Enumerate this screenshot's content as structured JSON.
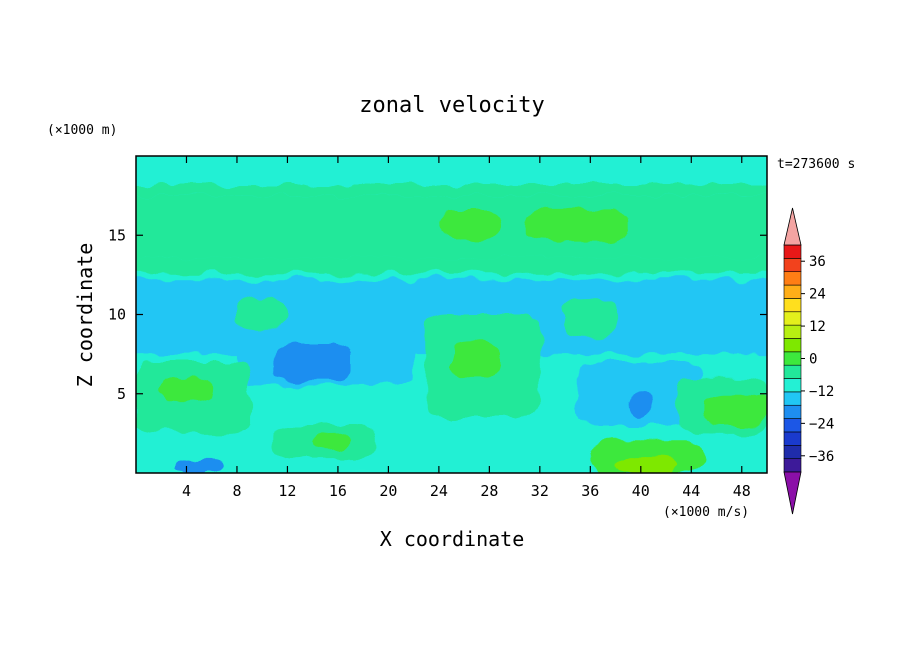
{
  "chart_data": {
    "type": "heatmap",
    "title": "zonal velocity",
    "xlabel": "X coordinate",
    "ylabel": "Z coordinate",
    "x_unit": "(×1000 m/s)",
    "y_unit": "(×1000 m)",
    "time_label": "t=273600 s",
    "xlim": [
      0,
      50
    ],
    "ylim": [
      0,
      20
    ],
    "x_ticks": [
      4,
      8,
      12,
      16,
      20,
      24,
      28,
      32,
      36,
      40,
      44,
      48
    ],
    "y_ticks": [
      5,
      10,
      15
    ],
    "colorbar": {
      "vmin": -42,
      "vmax": 42,
      "step": 6,
      "tick_values": [
        36,
        24,
        12,
        0,
        -12,
        -24,
        -36
      ],
      "tick_labels": [
        "36",
        "24",
        "12",
        "0",
        "−12",
        "−24",
        "−36"
      ],
      "colors_low_to_high": [
        "#3d1a99",
        "#1f2cab",
        "#1a3acd",
        "#1c57e6",
        "#1e8ef0",
        "#21c6f4",
        "#24f0d4",
        "#22e89a",
        "#3de83d",
        "#7ee800",
        "#b7ef12",
        "#e4f01c",
        "#ffdf1e",
        "#ffae18",
        "#ff7e15",
        "#f2421d",
        "#e81818"
      ],
      "under_color": "#8b0fa8",
      "over_color": "#f4a4a2"
    },
    "field_regions": [
      {
        "x": [
          0,
          50
        ],
        "z": [
          0,
          20
        ],
        "value": -3
      },
      {
        "x": [
          0,
          50
        ],
        "z": [
          13.6,
          17.5
        ],
        "value": 3
      },
      {
        "x": [
          0,
          50
        ],
        "z": [
          18.2,
          20
        ],
        "value": -3
      },
      {
        "x": [
          0,
          50
        ],
        "z": [
          17.5,
          18.2
        ],
        "value": 1
      },
      {
        "x": [
          0,
          50
        ],
        "z": [
          12.5,
          13.6
        ],
        "value": 1
      },
      {
        "x": [
          0,
          50
        ],
        "z": [
          7.5,
          12.2
        ],
        "value": -7
      },
      {
        "x": [
          0,
          50
        ],
        "z": [
          12.2,
          12.6
        ],
        "value": -4
      },
      {
        "x": [
          31,
          39
        ],
        "z": [
          14.6,
          16.6
        ],
        "value": 8
      },
      {
        "x": [
          24,
          29
        ],
        "z": [
          14.8,
          16.5
        ],
        "value": 6
      },
      {
        "x": [
          8,
          22
        ],
        "z": [
          5.5,
          9.5
        ],
        "value": -10
      },
      {
        "x": [
          11,
          17
        ],
        "z": [
          5.8,
          8.2
        ],
        "value": -13
      },
      {
        "x": [
          23,
          32
        ],
        "z": [
          3.5,
          10
        ],
        "value": 3
      },
      {
        "x": [
          25,
          29
        ],
        "z": [
          6,
          8.5
        ],
        "value": 8
      },
      {
        "x": [
          0,
          9
        ],
        "z": [
          2.5,
          7
        ],
        "value": 3
      },
      {
        "x": [
          2,
          6
        ],
        "z": [
          4.5,
          6
        ],
        "value": 9
      },
      {
        "x": [
          0,
          4
        ],
        "z": [
          0,
          2.5
        ],
        "value": -3
      },
      {
        "x": [
          3,
          7
        ],
        "z": [
          0,
          0.8
        ],
        "value": -16
      },
      {
        "x": [
          11,
          19
        ],
        "z": [
          1,
          3
        ],
        "value": 5
      },
      {
        "x": [
          14,
          17
        ],
        "z": [
          1.5,
          2.5
        ],
        "value": 9
      },
      {
        "x": [
          22,
          35
        ],
        "z": [
          0,
          3.5
        ],
        "value": -6
      },
      {
        "x": [
          36,
          45
        ],
        "z": [
          0,
          2
        ],
        "value": 6
      },
      {
        "x": [
          38,
          43
        ],
        "z": [
          0,
          1
        ],
        "value": 12
      },
      {
        "x": [
          35,
          45
        ],
        "z": [
          3,
          7
        ],
        "value": -9
      },
      {
        "x": [
          39,
          41
        ],
        "z": [
          3.5,
          5
        ],
        "value": -15
      },
      {
        "x": [
          43,
          50
        ],
        "z": [
          2.5,
          6
        ],
        "value": 4
      },
      {
        "x": [
          45,
          50
        ],
        "z": [
          3,
          5
        ],
        "value": 8
      },
      {
        "x": [
          34,
          38
        ],
        "z": [
          8.5,
          11
        ],
        "value": 0
      },
      {
        "x": [
          8,
          12
        ],
        "z": [
          9,
          11
        ],
        "value": 1
      },
      {
        "x": [
          45,
          50
        ],
        "z": [
          0,
          1.5
        ],
        "value": -6
      }
    ]
  }
}
